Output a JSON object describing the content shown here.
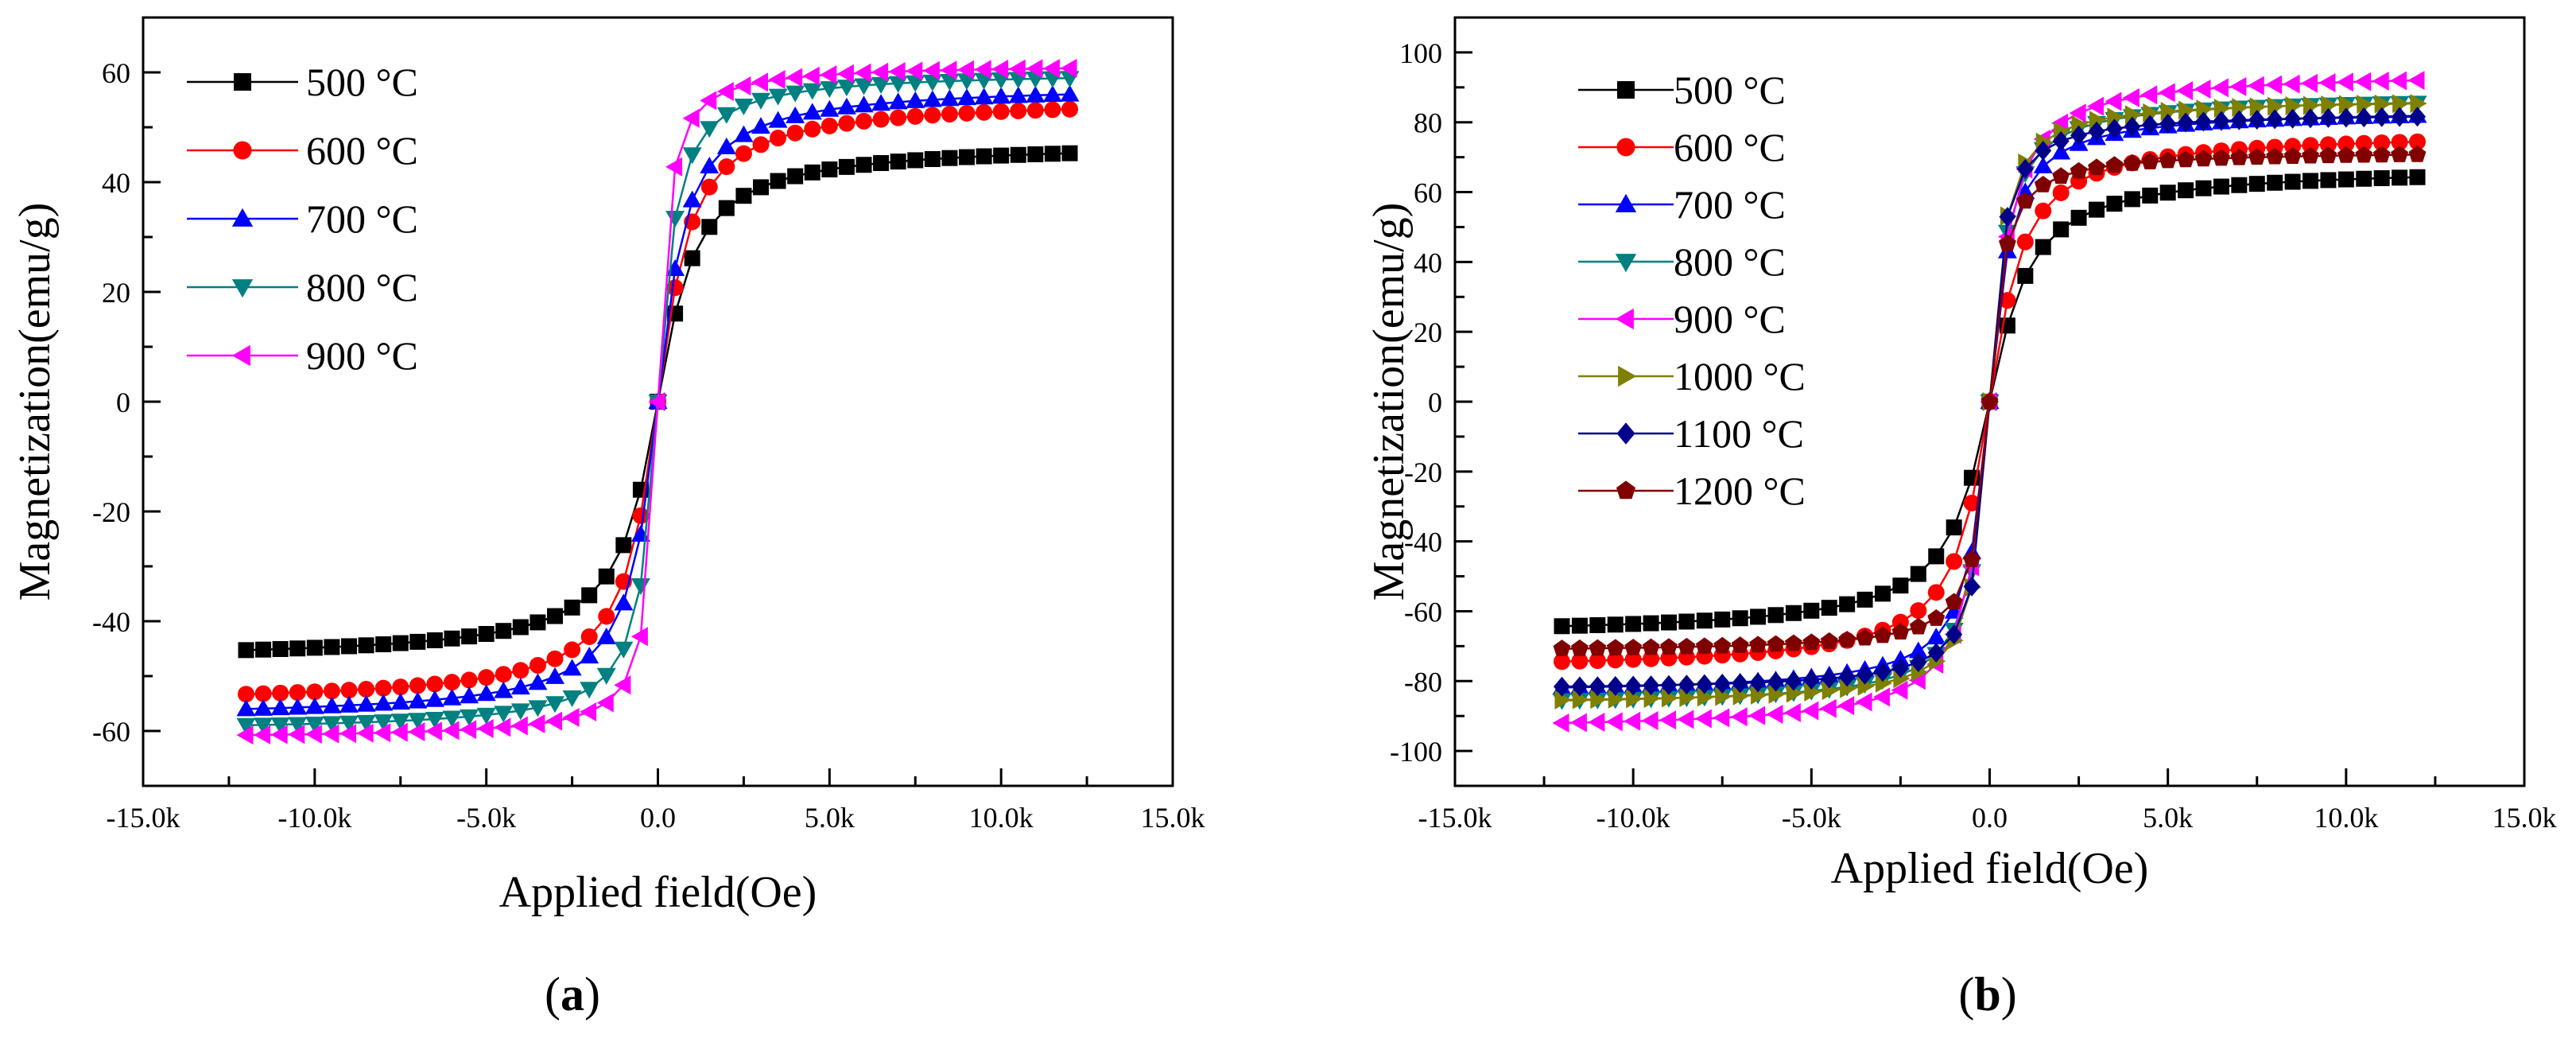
{
  "chart_data": [
    {
      "id": "a",
      "type": "scatter",
      "caption": {
        "open": "(",
        "letter": "a",
        "close": ")"
      },
      "xlabel": "Applied field(Oe)",
      "ylabel": "Magnetization(emu/g)",
      "xlim": [
        -15000,
        15000
      ],
      "ylim": [
        -70,
        70
      ],
      "xticks": [
        -15000,
        -10000,
        -5000,
        0,
        5000,
        10000,
        15000
      ],
      "xtick_labels": [
        "-15.0k",
        "-10.0k",
        "-5.0k",
        "0.0",
        "5.0k",
        "10.0k",
        "15.0k"
      ],
      "yticks": [
        -60,
        -40,
        -20,
        0,
        20,
        40,
        60
      ],
      "ytick_labels": [
        "-60",
        "-40",
        "-20",
        "0",
        "20",
        "40",
        "60"
      ],
      "legend_position": "top-left",
      "curve_model": "M(H) = Ms*(2/pi)*atan(H/H0)",
      "series": [
        {
          "name": "500 °C",
          "color": "#000000",
          "marker": "square",
          "Ms": 47.4,
          "H0": 850
        },
        {
          "name": "600 °C",
          "color": "#ff0000",
          "marker": "circle",
          "Ms": 55.5,
          "H0": 750
        },
        {
          "name": "700 °C",
          "color": "#0000ff",
          "marker": "triangle-up",
          "Ms": 58.0,
          "H0": 650
        },
        {
          "name": "800 °C",
          "color": "#008080",
          "marker": "triangle-down",
          "Ms": 60.3,
          "H0": 420
        },
        {
          "name": "900 °C",
          "color": "#ff00ff",
          "marker": "triangle-left",
          "Ms": 61.6,
          "H0": 260
        }
      ],
      "x_points": [
        -12000,
        -11500,
        -11000,
        -10500,
        -10000,
        -9500,
        -9000,
        -8500,
        -8000,
        -7500,
        -7000,
        -6500,
        -6000,
        -5500,
        -5000,
        -4500,
        -4000,
        -3500,
        -3000,
        -2500,
        -2000,
        -1500,
        -1000,
        -500,
        0,
        500,
        1000,
        1500,
        2000,
        2500,
        3000,
        3500,
        4000,
        4500,
        5000,
        5500,
        6000,
        6500,
        7000,
        7500,
        8000,
        8500,
        9000,
        9500,
        10000,
        10500,
        11000,
        11500,
        12000
      ]
    },
    {
      "id": "b",
      "type": "scatter",
      "caption": {
        "open": "(",
        "letter": "b",
        "close": ")"
      },
      "xlabel": "Applied field(Oe)",
      "ylabel": "Magnetization(emu/g)",
      "xlim": [
        -15000,
        15000
      ],
      "ylim": [
        -110,
        110
      ],
      "xticks": [
        -15000,
        -10000,
        -5000,
        0,
        5000,
        10000,
        15000
      ],
      "xtick_labels": [
        "-15.0k",
        "-10.0k",
        "-5.0k",
        "0.0",
        "5.0k",
        "10.0k",
        "15.0k"
      ],
      "yticks": [
        -100,
        -80,
        -60,
        -40,
        -20,
        0,
        20,
        40,
        60,
        80,
        100
      ],
      "ytick_labels": [
        "-100",
        "-80",
        "-60",
        "-40",
        "-20",
        "0",
        "20",
        "40",
        "60",
        "80",
        "100"
      ],
      "legend_position": "top-left",
      "curve_model": "M(H) = Ms*(2/pi)*atan(H/H0)",
      "series": [
        {
          "name": "500 °C",
          "color": "#000000",
          "marker": "square",
          "Ms": 67.5,
          "H0": 900
        },
        {
          "name": "600 °C",
          "color": "#ff0000",
          "marker": "circle",
          "Ms": 77.5,
          "H0": 750
        },
        {
          "name": "700 °C",
          "color": "#0000ff",
          "marker": "triangle-up",
          "Ms": 84.0,
          "H0": 480
        },
        {
          "name": "800 °C",
          "color": "#008080",
          "marker": "triangle-down",
          "Ms": 87.5,
          "H0": 420
        },
        {
          "name": "900 °C",
          "color": "#ff00ff",
          "marker": "triangle-left",
          "Ms": 94.5,
          "H0": 500
        },
        {
          "name": "1000 °C",
          "color": "#808000",
          "marker": "triangle-right",
          "Ms": 87.0,
          "H0": 350
        },
        {
          "name": "1100 °C",
          "color": "#00008b",
          "marker": "diamond",
          "Ms": 83.0,
          "H0": 320
        },
        {
          "name": "1200 °C",
          "color": "#800000",
          "marker": "pentagon",
          "Ms": 72.0,
          "H0": 330
        }
      ],
      "x_points": [
        -12000,
        -11500,
        -11000,
        -10500,
        -10000,
        -9500,
        -9000,
        -8500,
        -8000,
        -7500,
        -7000,
        -6500,
        -6000,
        -5500,
        -5000,
        -4500,
        -4000,
        -3500,
        -3000,
        -2500,
        -2000,
        -1500,
        -1000,
        -500,
        0,
        500,
        1000,
        1500,
        2000,
        2500,
        3000,
        3500,
        4000,
        4500,
        5000,
        5500,
        6000,
        6500,
        7000,
        7500,
        8000,
        8500,
        9000,
        9500,
        10000,
        10500,
        11000,
        11500,
        12000
      ]
    }
  ]
}
